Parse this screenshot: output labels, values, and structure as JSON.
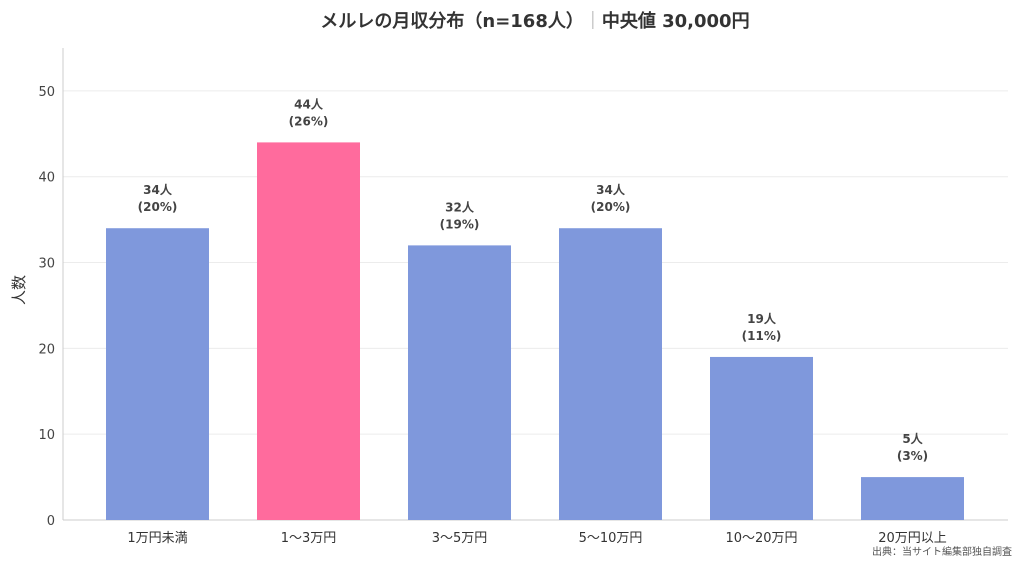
{
  "chart_data": {
    "type": "bar",
    "title": "メルレの月収分布（n=168人）",
    "title_separator": "｜",
    "subtitle": "中央値 30,000円",
    "ylabel": "人数",
    "xlabel": "",
    "ylim": [
      0,
      55
    ],
    "yticks": [
      0,
      10,
      20,
      30,
      40,
      50
    ],
    "grid": true,
    "categories": [
      "1万円未満",
      "1〜3万円",
      "3〜5万円",
      "5〜10万円",
      "10〜20万円",
      "20万円以上"
    ],
    "values": [
      34,
      44,
      32,
      34,
      19,
      5
    ],
    "value_labels": [
      "34人",
      "44人",
      "32人",
      "34人",
      "19人",
      "5人"
    ],
    "percent_labels": [
      "(20%)",
      "(26%)",
      "(19%)",
      "(20%)",
      "(11%)",
      "(3%)"
    ],
    "highlight_index": 1,
    "colors": {
      "default": "#7f98dc",
      "highlight": "#ff6b9d"
    },
    "source": "出典：当サイト編集部独自調査"
  }
}
